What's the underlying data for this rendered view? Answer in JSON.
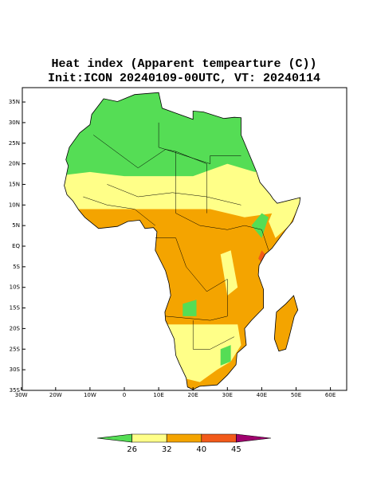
{
  "map": {
    "title": "Heat index (Apparent tempearture (C))",
    "subtitle": "Init:ICON 20240109-00UTC, VT: 20240114",
    "lat_ticks": [
      {
        "value": 35,
        "label": "35N"
      },
      {
        "value": 30,
        "label": "30N"
      },
      {
        "value": 25,
        "label": "25N"
      },
      {
        "value": 20,
        "label": "20N"
      },
      {
        "value": 15,
        "label": "15N"
      },
      {
        "value": 10,
        "label": "10N"
      },
      {
        "value": 5,
        "label": "5N"
      },
      {
        "value": 0,
        "label": "EQ"
      },
      {
        "value": -5,
        "label": "5S"
      },
      {
        "value": -10,
        "label": "10S"
      },
      {
        "value": -15,
        "label": "15S"
      },
      {
        "value": -20,
        "label": "20S"
      },
      {
        "value": -25,
        "label": "25S"
      },
      {
        "value": -30,
        "label": "30S"
      },
      {
        "value": -35,
        "label": "35S"
      }
    ],
    "lon_ticks": [
      {
        "value": -30,
        "label": "30W"
      },
      {
        "value": -20,
        "label": "20W"
      },
      {
        "value": -10,
        "label": "10W"
      },
      {
        "value": 0,
        "label": "0"
      },
      {
        "value": 10,
        "label": "10E"
      },
      {
        "value": 20,
        "label": "20E"
      },
      {
        "value": 30,
        "label": "30E"
      },
      {
        "value": 40,
        "label": "40E"
      },
      {
        "value": 50,
        "label": "50E"
      },
      {
        "value": 60,
        "label": "60E"
      }
    ],
    "legend": {
      "boundaries": [
        "26",
        "32",
        "40",
        "45"
      ],
      "colors": [
        "#55dd55",
        "#ffff88",
        "#f4a400",
        "#f25a1a",
        "#a0006e"
      ]
    }
  }
}
